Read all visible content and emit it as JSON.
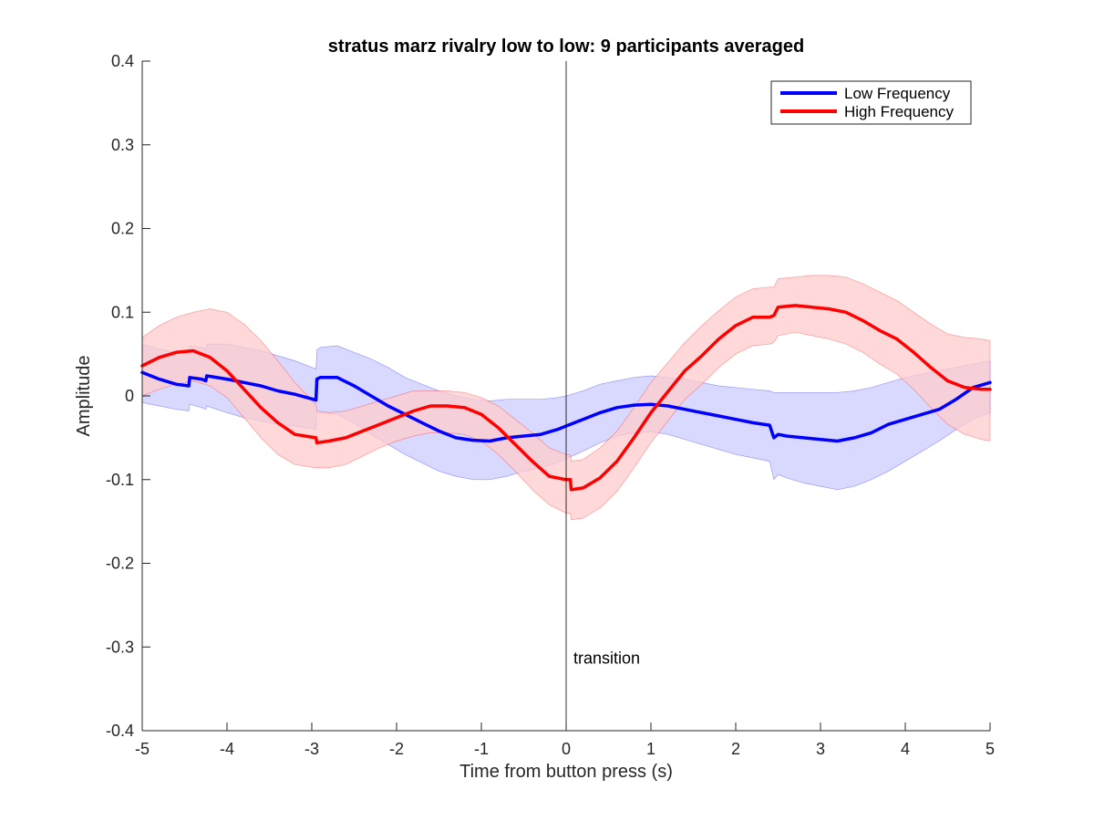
{
  "chart_data": {
    "type": "line",
    "title": "stratus marz rivalry low to low: 9 participants averaged",
    "xlabel": "Time from button press (s)",
    "ylabel": "Amplitude",
    "xlim": [
      -5,
      5
    ],
    "ylim": [
      -0.4,
      0.4
    ],
    "xticks": [
      "-5",
      "-4",
      "-3",
      "-2",
      "-1",
      "0",
      "1",
      "2",
      "3",
      "4",
      "5"
    ],
    "yticks": [
      "-0.4",
      "-0.3",
      "-0.2",
      "-0.1",
      "0",
      "0.1",
      "0.2",
      "0.3",
      "0.4"
    ],
    "grid": false,
    "legend_position": "top-right",
    "annotation": {
      "text": "transition",
      "x": 0
    },
    "series": [
      {
        "name": "Low Frequency",
        "color": "#0000ff",
        "band_color": "#ccccff",
        "x": [
          -5,
          -4.8,
          -4.6,
          -4.45,
          -4.44,
          -4.3,
          -4.25,
          -4.24,
          -4,
          -3.8,
          -3.6,
          -3.4,
          -3.2,
          -2.95,
          -2.94,
          -2.9,
          -2.7,
          -2.5,
          -2.3,
          -2.1,
          -1.9,
          -1.7,
          -1.5,
          -1.3,
          -1.1,
          -0.9,
          -0.7,
          -0.5,
          -0.3,
          -0.1,
          0,
          0.2,
          0.4,
          0.6,
          0.8,
          1.0,
          1.2,
          1.4,
          1.6,
          1.8,
          2.0,
          2.2,
          2.4,
          2.45,
          2.5,
          2.6,
          2.8,
          3.0,
          3.2,
          3.4,
          3.6,
          3.8,
          4.0,
          4.2,
          4.4,
          4.6,
          4.8,
          5.0
        ],
        "y": [
          0.028,
          0.02,
          0.014,
          0.012,
          0.022,
          0.02,
          0.018,
          0.024,
          0.02,
          0.016,
          0.012,
          0.006,
          0.002,
          -0.005,
          0.02,
          0.022,
          0.022,
          0.012,
          0.0,
          -0.012,
          -0.022,
          -0.032,
          -0.042,
          -0.05,
          -0.053,
          -0.054,
          -0.05,
          -0.048,
          -0.046,
          -0.04,
          -0.036,
          -0.028,
          -0.02,
          -0.014,
          -0.011,
          -0.01,
          -0.012,
          -0.016,
          -0.02,
          -0.024,
          -0.028,
          -0.032,
          -0.035,
          -0.05,
          -0.046,
          -0.048,
          -0.05,
          -0.052,
          -0.054,
          -0.05,
          -0.044,
          -0.034,
          -0.028,
          -0.022,
          -0.016,
          -0.004,
          0.01,
          0.016
        ],
        "lower": [
          -0.008,
          -0.012,
          -0.016,
          -0.018,
          -0.01,
          -0.014,
          -0.016,
          -0.012,
          -0.02,
          -0.026,
          -0.03,
          -0.034,
          -0.036,
          -0.04,
          -0.02,
          -0.02,
          -0.022,
          -0.032,
          -0.046,
          -0.058,
          -0.07,
          -0.08,
          -0.09,
          -0.096,
          -0.1,
          -0.1,
          -0.096,
          -0.09,
          -0.086,
          -0.08,
          -0.075,
          -0.066,
          -0.056,
          -0.048,
          -0.044,
          -0.043,
          -0.046,
          -0.052,
          -0.058,
          -0.064,
          -0.07,
          -0.074,
          -0.078,
          -0.1,
          -0.094,
          -0.098,
          -0.104,
          -0.108,
          -0.112,
          -0.108,
          -0.1,
          -0.09,
          -0.078,
          -0.066,
          -0.054,
          -0.04,
          -0.028,
          -0.02
        ],
        "upper": [
          0.062,
          0.056,
          0.052,
          0.05,
          0.06,
          0.058,
          0.056,
          0.062,
          0.062,
          0.058,
          0.054,
          0.048,
          0.042,
          0.032,
          0.055,
          0.058,
          0.06,
          0.052,
          0.044,
          0.034,
          0.022,
          0.014,
          0.006,
          0.0,
          -0.004,
          -0.006,
          -0.004,
          -0.004,
          -0.004,
          -0.002,
          0.0,
          0.006,
          0.014,
          0.018,
          0.022,
          0.024,
          0.022,
          0.02,
          0.016,
          0.012,
          0.01,
          0.008,
          0.006,
          0.004,
          0.004,
          0.004,
          0.004,
          0.004,
          0.004,
          0.006,
          0.01,
          0.016,
          0.022,
          0.026,
          0.03,
          0.034,
          0.038,
          0.042
        ]
      },
      {
        "name": "High Frequency",
        "color": "#ff0000",
        "band_color": "#ffcccc",
        "x": [
          -5,
          -4.8,
          -4.6,
          -4.4,
          -4.2,
          -4.0,
          -3.8,
          -3.6,
          -3.4,
          -3.2,
          -2.95,
          -2.94,
          -2.8,
          -2.6,
          -2.4,
          -2.2,
          -2.0,
          -1.8,
          -1.6,
          -1.4,
          -1.2,
          -1.0,
          -0.8,
          -0.6,
          -0.4,
          -0.2,
          0.0,
          0.05,
          0.06,
          0.2,
          0.4,
          0.6,
          0.8,
          1.0,
          1.2,
          1.4,
          1.6,
          1.8,
          2.0,
          2.2,
          2.4,
          2.45,
          2.5,
          2.7,
          2.9,
          3.1,
          3.3,
          3.5,
          3.7,
          3.9,
          4.1,
          4.3,
          4.5,
          4.7,
          4.9,
          5.0
        ],
        "y": [
          0.036,
          0.046,
          0.052,
          0.054,
          0.046,
          0.03,
          0.008,
          -0.014,
          -0.032,
          -0.046,
          -0.05,
          -0.056,
          -0.054,
          -0.05,
          -0.042,
          -0.034,
          -0.026,
          -0.018,
          -0.012,
          -0.012,
          -0.014,
          -0.022,
          -0.038,
          -0.058,
          -0.078,
          -0.096,
          -0.1,
          -0.1,
          -0.112,
          -0.11,
          -0.098,
          -0.078,
          -0.05,
          -0.02,
          0.005,
          0.03,
          0.048,
          0.068,
          0.084,
          0.094,
          0.094,
          0.096,
          0.106,
          0.108,
          0.106,
          0.104,
          0.1,
          0.09,
          0.078,
          0.068,
          0.052,
          0.034,
          0.018,
          0.01,
          0.008,
          0.008
        ],
        "lower": [
          0.0,
          0.008,
          0.014,
          0.018,
          0.012,
          -0.002,
          -0.026,
          -0.05,
          -0.07,
          -0.082,
          -0.086,
          -0.086,
          -0.086,
          -0.082,
          -0.072,
          -0.062,
          -0.054,
          -0.048,
          -0.044,
          -0.044,
          -0.046,
          -0.054,
          -0.07,
          -0.09,
          -0.112,
          -0.13,
          -0.14,
          -0.14,
          -0.148,
          -0.146,
          -0.134,
          -0.114,
          -0.086,
          -0.056,
          -0.03,
          -0.004,
          0.014,
          0.034,
          0.05,
          0.06,
          0.062,
          0.064,
          0.072,
          0.076,
          0.072,
          0.068,
          0.062,
          0.052,
          0.038,
          0.026,
          0.008,
          -0.014,
          -0.034,
          -0.046,
          -0.052,
          -0.054
        ],
        "upper": [
          0.07,
          0.084,
          0.094,
          0.1,
          0.104,
          0.1,
          0.086,
          0.066,
          0.042,
          0.016,
          -0.01,
          -0.018,
          -0.02,
          -0.018,
          -0.012,
          -0.006,
          0.0,
          0.006,
          0.006,
          0.006,
          0.004,
          -0.002,
          -0.012,
          -0.028,
          -0.044,
          -0.062,
          -0.07,
          -0.07,
          -0.078,
          -0.076,
          -0.062,
          -0.042,
          -0.014,
          0.016,
          0.04,
          0.064,
          0.084,
          0.102,
          0.118,
          0.128,
          0.13,
          0.13,
          0.14,
          0.142,
          0.144,
          0.144,
          0.142,
          0.134,
          0.124,
          0.114,
          0.1,
          0.086,
          0.074,
          0.07,
          0.068,
          0.066
        ]
      }
    ]
  }
}
